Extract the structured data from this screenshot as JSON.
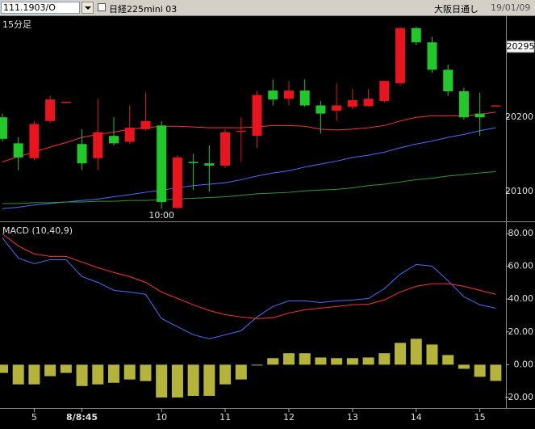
{
  "header": {
    "symbol": "111.1903/O",
    "instrument": "日経225mini 03",
    "session": "大阪日通し",
    "date": "19/01/09"
  },
  "chart_data": [
    {
      "type": "candlestick",
      "title": "15分足",
      "annotations": [
        {
          "x": 10,
          "text": "10:00"
        }
      ],
      "xlim": [
        -0.15,
        31.64
      ],
      "ylim": [
        20061,
        20334
      ],
      "yticks": [
        20100,
        20200
      ],
      "price_marker": 20295,
      "up_color": "#e8141e",
      "down_color": "#20c82a",
      "open": [
        20200,
        20165,
        20145,
        20195,
        20221,
        20164,
        20145,
        20175,
        20167,
        20184,
        20189,
        20078,
        20140,
        20138,
        20135,
        20182,
        20175,
        20236,
        20225,
        20236,
        20216,
        20209,
        20214,
        20215,
        20222,
        20246,
        20320,
        20301,
        20264,
        20235,
        20205,
        20216
      ],
      "high": [
        20205,
        20173,
        20195,
        20229,
        20221,
        20184,
        20225,
        20200,
        20216,
        20233,
        20195,
        20149,
        20151,
        20162,
        20184,
        20200,
        20236,
        20251,
        20249,
        20251,
        20222,
        20246,
        20238,
        20238,
        20249,
        20322,
        20322,
        20308,
        20271,
        20240,
        20233,
        20216
      ],
      "low": [
        20167,
        20129,
        20142,
        20192,
        20221,
        20129,
        20129,
        20162,
        20164,
        20182,
        20077,
        20077,
        20102,
        20100,
        20132,
        20140,
        20159,
        20216,
        20216,
        20214,
        20178,
        20195,
        20211,
        20214,
        20220,
        20242,
        20297,
        20260,
        20229,
        20197,
        20175,
        20216
      ],
      "close": [
        20171,
        20146,
        20191,
        20224,
        20221,
        20138,
        20180,
        20165,
        20186,
        20195,
        20086,
        20146,
        20139,
        20135,
        20180,
        20182,
        20230,
        20224,
        20236,
        20216,
        20205,
        20216,
        20223,
        20225,
        20249,
        20320,
        20301,
        20264,
        20235,
        20200,
        20200,
        20216
      ],
      "series": [
        {
          "color": "#ff3030",
          "values": [
            20140,
            20147,
            20153,
            20160,
            20166,
            20173,
            20177,
            20180,
            20184,
            20186,
            20188,
            20188,
            20187,
            20186,
            20186,
            20186,
            20187,
            20189,
            20189,
            20188,
            20184,
            20183,
            20184,
            20186,
            20189,
            20195,
            20200,
            20202,
            20202,
            20202,
            20204,
            20207
          ]
        },
        {
          "color": "#4a6cff",
          "values": [
            20077,
            20079,
            20082,
            20084,
            20086,
            20088,
            20090,
            20093,
            20096,
            20099,
            20102,
            20105,
            20108,
            20110,
            20112,
            20116,
            20121,
            20125,
            20128,
            20133,
            20137,
            20141,
            20146,
            20149,
            20153,
            20159,
            20164,
            20168,
            20173,
            20177,
            20182,
            20186
          ]
        },
        {
          "color": "#2f9a2f",
          "values": [
            20084,
            20084,
            20085,
            20085,
            20086,
            20086,
            20087,
            20087,
            20088,
            20088,
            20089,
            20090,
            20091,
            20092,
            20093,
            20095,
            20097,
            20098,
            20099,
            20101,
            20102,
            20103,
            20105,
            20108,
            20110,
            20113,
            20116,
            20118,
            20121,
            20123,
            20125,
            20127
          ]
        }
      ]
    },
    {
      "type": "macd",
      "title": "MACD (10,40,9)",
      "xlim": [
        -0.15,
        31.64
      ],
      "xticks": [
        {
          "value": 2,
          "label": "5"
        },
        {
          "value": 5,
          "label": "8/8:45"
        },
        {
          "value": 10,
          "label": "10"
        },
        {
          "value": 14,
          "label": "11"
        },
        {
          "value": 18,
          "label": "12"
        },
        {
          "value": 22,
          "label": "13"
        },
        {
          "value": 26,
          "label": "14"
        },
        {
          "value": 30,
          "label": "15"
        }
      ],
      "ylim": [
        -26.4,
        85.4
      ],
      "yticks": [
        {
          "value": 80,
          "label": "80.00"
        },
        {
          "value": 60,
          "label": "60.00"
        },
        {
          "value": 40,
          "label": "40.00"
        },
        {
          "value": 20,
          "label": "20.00"
        },
        {
          "value": 0,
          "label": "0.00"
        },
        {
          "value": -20,
          "label": "-20.00"
        }
      ],
      "series": [
        {
          "type": "bar",
          "color": "#b4b43a",
          "values": [
            -5,
            -12,
            -12,
            -7,
            -5,
            -13,
            -12,
            -11,
            -9,
            -10,
            -20,
            -20,
            -19,
            -19,
            -12,
            -9,
            -0.5,
            4,
            7,
            7,
            4.4,
            4,
            4,
            4.4,
            7,
            13.3,
            15.8,
            12.3,
            5.9,
            -2.5,
            -7.4,
            -9.9
          ]
        },
        {
          "type": "line",
          "color": "#4a6cff",
          "values": [
            77.3,
            65.0,
            61.6,
            64.0,
            64.0,
            53.7,
            50.2,
            45.3,
            44.3,
            42.9,
            28.1,
            23.2,
            18.2,
            15.8,
            18.2,
            20.7,
            29.1,
            35.5,
            38.9,
            38.9,
            37.9,
            38.9,
            39.4,
            40.4,
            46.3,
            55.2,
            61.1,
            60.1,
            51.2,
            41.4,
            36.5,
            34.5
          ]
        },
        {
          "type": "line",
          "color": "#ff3030",
          "values": [
            79.8,
            72.4,
            67.5,
            66.0,
            66.0,
            62.6,
            59.1,
            56.2,
            53.7,
            50.2,
            44.3,
            40.4,
            36.5,
            33.0,
            30.5,
            29.1,
            28.1,
            28.6,
            31.5,
            33.5,
            34.5,
            35.5,
            36.5,
            36.9,
            39.4,
            44.3,
            47.8,
            49.3,
            49.3,
            47.8,
            45.3,
            42.9
          ]
        }
      ]
    }
  ]
}
